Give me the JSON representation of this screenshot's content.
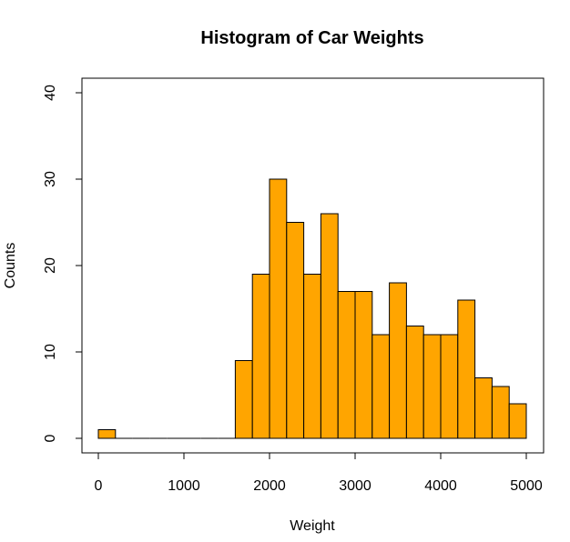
{
  "chart_data": {
    "type": "bar",
    "title": "Histogram of Car Weights",
    "xlabel": "Weight",
    "ylabel": "Counts",
    "xlim": [
      0,
      5000
    ],
    "ylim": [
      0,
      40
    ],
    "x_ticks": [
      0,
      1000,
      2000,
      3000,
      4000,
      5000
    ],
    "y_ticks": [
      0,
      10,
      20,
      30,
      40
    ],
    "bin_width": 200,
    "bins": [
      {
        "start": 0,
        "end": 200,
        "count": 1
      },
      {
        "start": 200,
        "end": 400,
        "count": 0
      },
      {
        "start": 400,
        "end": 600,
        "count": 0
      },
      {
        "start": 600,
        "end": 800,
        "count": 0
      },
      {
        "start": 800,
        "end": 1000,
        "count": 0
      },
      {
        "start": 1000,
        "end": 1200,
        "count": 0
      },
      {
        "start": 1200,
        "end": 1400,
        "count": 0
      },
      {
        "start": 1400,
        "end": 1600,
        "count": 0
      },
      {
        "start": 1600,
        "end": 1800,
        "count": 9
      },
      {
        "start": 1800,
        "end": 2000,
        "count": 19
      },
      {
        "start": 2000,
        "end": 2200,
        "count": 30
      },
      {
        "start": 2200,
        "end": 2400,
        "count": 25
      },
      {
        "start": 2400,
        "end": 2600,
        "count": 19
      },
      {
        "start": 2600,
        "end": 2800,
        "count": 26
      },
      {
        "start": 2800,
        "end": 3000,
        "count": 17
      },
      {
        "start": 3000,
        "end": 3200,
        "count": 17
      },
      {
        "start": 3200,
        "end": 3400,
        "count": 12
      },
      {
        "start": 3400,
        "end": 3600,
        "count": 18
      },
      {
        "start": 3600,
        "end": 3800,
        "count": 13
      },
      {
        "start": 3800,
        "end": 4000,
        "count": 12
      },
      {
        "start": 4000,
        "end": 4200,
        "count": 12
      },
      {
        "start": 4200,
        "end": 4400,
        "count": 16
      },
      {
        "start": 4400,
        "end": 4600,
        "count": 7
      },
      {
        "start": 4600,
        "end": 4800,
        "count": 6
      },
      {
        "start": 4800,
        "end": 5000,
        "count": 4
      }
    ],
    "bar_color": "#FFA500",
    "bar_edge_color": "#000000",
    "grid": false,
    "legend": "none"
  }
}
